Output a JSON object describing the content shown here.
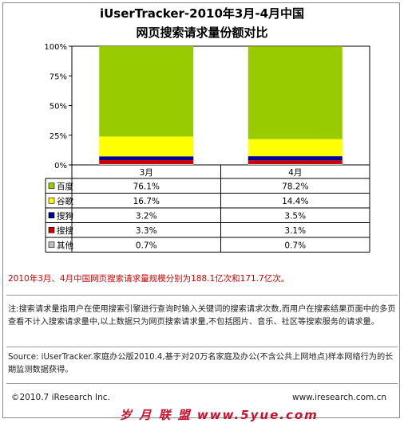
{
  "title_line1": "iUserTracker-2010年3月-4月中国",
  "title_line2": "网页搜索请求量份额对比",
  "chart_data": {
    "type": "bar",
    "stacked": true,
    "title": "iUserTracker-2010年3月-4月中国 网页搜索请求量份额对比",
    "categories": [
      "3月",
      "4月"
    ],
    "y_ticks": [
      "0%",
      "25%",
      "50%",
      "75%",
      "100%"
    ],
    "ylim": [
      0,
      100
    ],
    "series": [
      {
        "name": "百度",
        "values": [
          76.1,
          78.2
        ],
        "labels": [
          "76.1%",
          "78.2%"
        ],
        "color": "#99cc00"
      },
      {
        "name": "谷歌",
        "values": [
          16.7,
          14.4
        ],
        "labels": [
          "16.7%",
          "14.4%"
        ],
        "color": "#ffff00"
      },
      {
        "name": "搜狗",
        "values": [
          3.2,
          3.5
        ],
        "labels": [
          "3.2%",
          "3.5%"
        ],
        "color": "#000099"
      },
      {
        "name": "搜搜",
        "values": [
          3.3,
          3.1
        ],
        "labels": [
          "3.3%",
          "3.1%"
        ],
        "color": "#cc0000"
      },
      {
        "name": "其他",
        "values": [
          0.7,
          0.7
        ],
        "labels": [
          "0.7%",
          "0.7%"
        ],
        "color": "#bfbfbf"
      }
    ]
  },
  "note_scale": "2010年3月、4月中国网页搜索请求量规模分别为188.1亿次和171.7亿次。",
  "note_definition": "注:搜索请求量指用户在使用搜索引擎进行查询时输入关键词的搜索请求次数,而用户在搜索结果页面中的多页查看不计入搜索请求量中,以上数据只为网页搜索请求量,不包括图片、音乐、社区等搜索服务的请求量。",
  "note_source": "Source: iUserTracker.家庭办公版2010.4,基于对20万名家庭及办公(不含公共上网地点)样本网络行为的长期监测数据获得。",
  "footer_copyright": "©2010.7 iResearch Inc.",
  "footer_url": "www.iresearch.com.cn",
  "watermark": "岁 月 联 盟 www.5yue.com"
}
